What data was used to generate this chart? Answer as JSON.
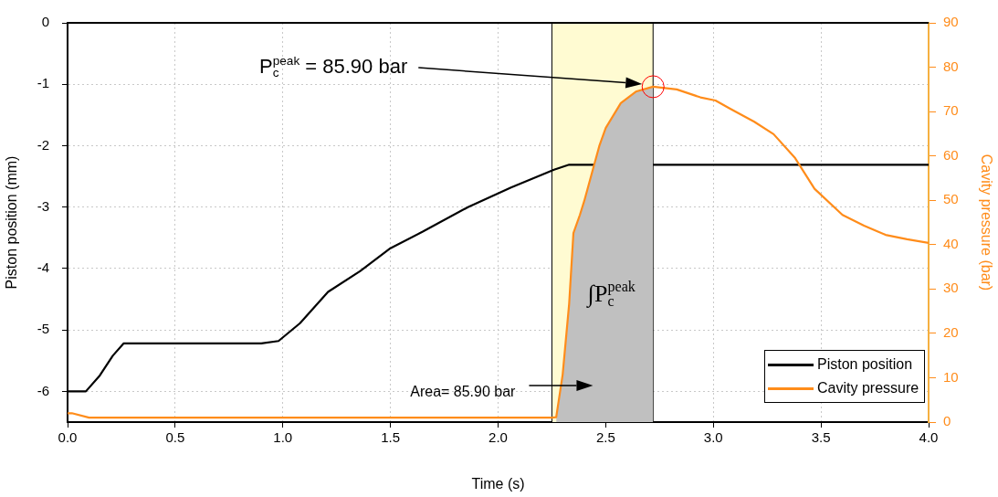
{
  "chart_data": {
    "type": "line",
    "xlabel": "Time (s)",
    "ylabel": "Piston position (mm)",
    "y2label": "Cavity pressure (bar)",
    "xlim": [
      0,
      4
    ],
    "xticks": [
      {
        "value": 0,
        "label": "0.0"
      },
      {
        "value": 0.5,
        "label": "0.5"
      },
      {
        "value": 1,
        "label": "1.0"
      },
      {
        "value": 1.5,
        "label": "1.5"
      },
      {
        "value": 2,
        "label": "2.0"
      },
      {
        "value": 2.5,
        "label": "2.5"
      },
      {
        "value": 3,
        "label": "3.0"
      },
      {
        "value": 3.5,
        "label": "3.5"
      },
      {
        "value": 4,
        "label": "4.0"
      }
    ],
    "ylim": [
      -6.5,
      0
    ],
    "yticks": [
      -6,
      -5,
      -4,
      -3,
      -2,
      -1,
      0
    ],
    "y2lim": [
      0,
      90
    ],
    "y2ticks": [
      0,
      10,
      20,
      30,
      40,
      50,
      60,
      70,
      80,
      90
    ],
    "grid": true,
    "legend": "bottom right",
    "marker": "none",
    "line_style": "solid",
    "bands": [
      {
        "axis": "x",
        "from": 2.25,
        "to": 2.72,
        "color": "#fffbd2"
      }
    ],
    "ref_lines": [
      {
        "axis": "x",
        "value": 2.25,
        "color": "#000000"
      },
      {
        "axis": "x",
        "value": 2.72,
        "color": "#000000"
      }
    ],
    "series": [
      {
        "name": "Piston position",
        "type": "line",
        "color": "#000000",
        "x": [
          0,
          0.085,
          0.15,
          0.21,
          0.26,
          0.5,
          0.9,
          0.98,
          1.08,
          1.21,
          1.36,
          1.5,
          1.65,
          1.86,
          2.06,
          2.26,
          2.33,
          3.0,
          4.0
        ],
        "values": [
          -6.0,
          -6.0,
          -5.74,
          -5.42,
          -5.22,
          -5.22,
          -5.22,
          -5.18,
          -4.89,
          -4.38,
          -4.04,
          -3.67,
          -3.4,
          -3.0,
          -2.68,
          -2.39,
          -2.31,
          -2.31,
          -2.31
        ]
      },
      {
        "type": "area",
        "axis": "y2",
        "color": "#c0c0c0",
        "x": [
          2.27,
          2.3,
          2.33,
          2.35,
          2.38,
          2.4,
          2.47,
          2.5,
          2.57,
          2.64,
          2.72
        ],
        "values": [
          1.1,
          10.7,
          26.6,
          42.6,
          46.7,
          49.8,
          62.2,
          66.3,
          71.9,
          74.5,
          75.6
        ]
      },
      {
        "name": "Cavity pressure",
        "type": "line",
        "axis": "y2",
        "color": "#ff8c1a",
        "x": [
          0,
          0.02,
          0.1,
          0.5,
          1.0,
          1.5,
          2.0,
          2.25,
          2.27,
          2.3,
          2.33,
          2.35,
          2.38,
          2.4,
          2.47,
          2.5,
          2.57,
          2.64,
          2.72,
          2.83,
          2.94,
          3.01,
          3.08,
          3.19,
          3.28,
          3.38,
          3.47,
          3.6,
          3.7,
          3.8,
          3.9,
          4.0
        ],
        "values": [
          2,
          2,
          1,
          1,
          1,
          1,
          1,
          1,
          1.1,
          10.7,
          26.6,
          42.6,
          46.7,
          49.8,
          62.2,
          66.3,
          71.9,
          74.5,
          75.6,
          75,
          73.2,
          72.5,
          70.6,
          67.7,
          64.9,
          59.5,
          52.6,
          46.7,
          44.3,
          42.2,
          41.2,
          40.4
        ]
      }
    ],
    "annotations": [
      "P$_{c}$$^{peak}$ = 85.90 bar",
      "Area= 85.90 bar",
      "∫P$_{c}$$^{peak}$"
    ]
  }
}
